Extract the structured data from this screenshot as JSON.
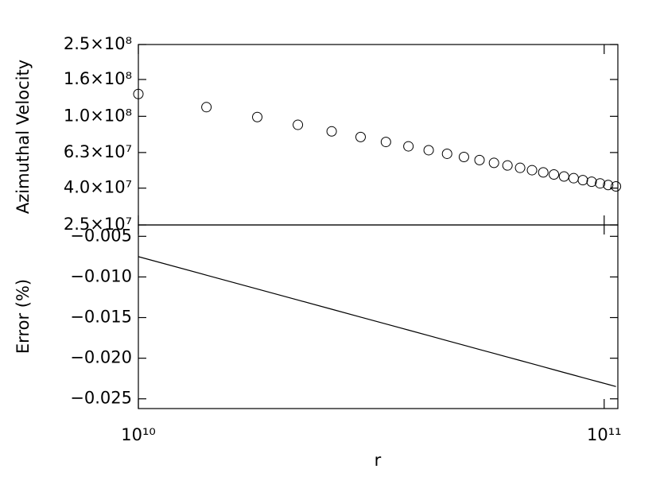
{
  "chart_data": [
    {
      "type": "scatter",
      "ylabel": "Azimuthal Velocity",
      "xlog": true,
      "ylog": true,
      "grid": false,
      "color": "#000000",
      "x": [
        10000000000.0,
        14000000000.0,
        18000000000.0,
        22000000000.0,
        26000000000.0,
        30000000000.0,
        34000000000.0,
        38000000000.0,
        42000000000.0,
        46000000000.0,
        50000000000.0,
        54000000000.0,
        58000000000.0,
        62000000000.0,
        66000000000.0,
        70000000000.0,
        74000000000.0,
        78000000000.0,
        82000000000.0,
        86000000000.0,
        90000000000.0,
        94000000000.0,
        98000000000.0,
        102000000000.0,
        106000000000.0
      ],
      "values": [
        133000000.0,
        112400000.0,
        99100000.0,
        89700000.0,
        82500000.0,
        76800000.0,
        72100000.0,
        68200000.0,
        64900000.0,
        62000000.0,
        59500000.0,
        57200000.0,
        55200000.0,
        53400000.0,
        51800000.0,
        50300000.0,
        48900000.0,
        47600000.0,
        46400000.0,
        45400000.0,
        44300000.0,
        43400000.0,
        42500000.0,
        41600000.0,
        40900000.0
      ],
      "xlim": [
        10000000000.0,
        107000000000.0
      ],
      "ylim": [
        25000000.0,
        250000000.0
      ],
      "yticks": [
        {
          "value": 25000000.0,
          "label": "2.5×10⁷"
        },
        {
          "value": 40000000.0,
          "label": "4.0×10⁷"
        },
        {
          "value": 63000000.0,
          "label": "6.3×10⁷"
        },
        {
          "value": 100000000.0,
          "label": "1.0×10⁸"
        },
        {
          "value": 160000000.0,
          "label": "1.6×10⁸"
        },
        {
          "value": 250000000.0,
          "label": "2.5×10⁸"
        }
      ]
    },
    {
      "type": "line",
      "ylabel": "Error (%)",
      "xlabel": "r",
      "xlog": true,
      "ylog": false,
      "grid": false,
      "color": "#000000",
      "x": [
        10000000000.0,
        14000000000.0,
        18000000000.0,
        22000000000.0,
        26000000000.0,
        30000000000.0,
        34000000000.0,
        38000000000.0,
        42000000000.0,
        46000000000.0,
        50000000000.0,
        54000000000.0,
        58000000000.0,
        62000000000.0,
        66000000000.0,
        70000000000.0,
        74000000000.0,
        78000000000.0,
        82000000000.0,
        86000000000.0,
        90000000000.0,
        94000000000.0,
        98000000000.0,
        102000000000.0,
        106000000000.0
      ],
      "values": [
        -0.0075,
        -0.00978,
        -0.01148,
        -0.01284,
        -0.01397,
        -0.01494,
        -0.01579,
        -0.01654,
        -0.01722,
        -0.01784,
        -0.0184,
        -0.01893,
        -0.01941,
        -0.01986,
        -0.02028,
        -0.02068,
        -0.02106,
        -0.02142,
        -0.02176,
        -0.02208,
        -0.02239,
        -0.02268,
        -0.02296,
        -0.02323,
        -0.02349
      ],
      "xlim": [
        10000000000.0,
        107000000000.0
      ],
      "ylim": [
        -0.0262,
        -0.0036
      ],
      "xticks": [
        {
          "value": 10000000000.0,
          "label": "10¹⁰"
        },
        {
          "value": 100000000000.0,
          "label": "10¹¹"
        }
      ],
      "yticks": [
        {
          "value": -0.005,
          "label": "−0.005"
        },
        {
          "value": -0.01,
          "label": "−0.010"
        },
        {
          "value": -0.015,
          "label": "−0.015"
        },
        {
          "value": -0.02,
          "label": "−0.020"
        },
        {
          "value": -0.025,
          "label": "−0.025"
        }
      ]
    }
  ]
}
